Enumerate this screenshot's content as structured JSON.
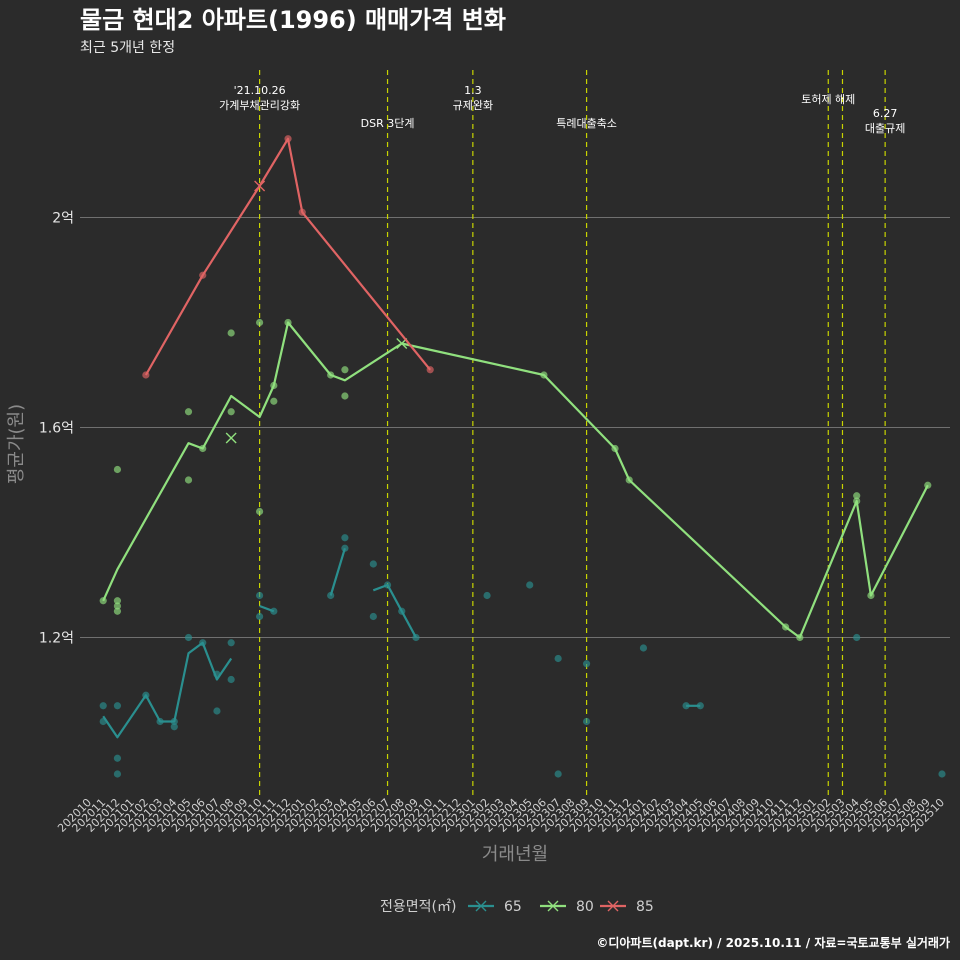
{
  "chart_data": {
    "type": "line",
    "title": "물금 현대2 아파트(1996) 매매가격 변화",
    "subtitle": "최근 5개년 한정",
    "xlabel": "거래년월",
    "ylabel": "평균가(원)",
    "caption": "©디아파트(dapt.kr) / 2025.10.11 / 자료=국토교통부 실거래가",
    "ylim": [
      0.9,
      2.3
    ],
    "yticks": [
      {
        "value": 1.2,
        "label": "1.2억"
      },
      {
        "value": 1.6,
        "label": "1.6억"
      },
      {
        "value": 2.0,
        "label": "2억"
      }
    ],
    "x_start": "202010",
    "x_end": "202510",
    "x_categories": [
      "202010",
      "202011",
      "202012",
      "202101",
      "202102",
      "202103",
      "202104",
      "202105",
      "202106",
      "202107",
      "202108",
      "202109",
      "202110",
      "202111",
      "202112",
      "202201",
      "202202",
      "202203",
      "202204",
      "202205",
      "202206",
      "202207",
      "202208",
      "202209",
      "202210",
      "202211",
      "202212",
      "202301",
      "202302",
      "202303",
      "202304",
      "202305",
      "202306",
      "202307",
      "202308",
      "202309",
      "202310",
      "202311",
      "202312",
      "202401",
      "202402",
      "202403",
      "202404",
      "202405",
      "202406",
      "202407",
      "202408",
      "202409",
      "202410",
      "202411",
      "202412",
      "202501",
      "202502",
      "202503",
      "202504",
      "202505",
      "202506",
      "202507",
      "202508",
      "202509",
      "202510"
    ],
    "legend_title": "전용면적(㎡)",
    "series": [
      {
        "name": "65",
        "color": "#2a8f8f",
        "line": [
          {
            "x": "202011",
            "y": 1.05
          },
          {
            "x": "202012",
            "y": 1.01
          },
          {
            "x": "202102",
            "y": 1.09
          },
          {
            "x": "202103",
            "y": 1.04
          },
          {
            "x": "202104",
            "y": 1.04
          },
          {
            "x": "202105",
            "y": 1.17
          },
          {
            "x": "202106",
            "y": 1.19
          },
          {
            "x": "202107",
            "y": 1.12
          },
          {
            "x": "202108",
            "y": 1.16
          },
          {
            "x": "202110",
            "y": 1.26
          },
          {
            "x": "202111",
            "y": 1.25
          },
          {
            "x": "202203",
            "y": 1.28
          },
          {
            "x": "202204",
            "y": 1.37
          },
          {
            "x": "202206",
            "y": 1.29
          },
          {
            "x": "202207",
            "y": 1.3
          },
          {
            "x": "202208",
            "y": 1.25
          },
          {
            "x": "202209",
            "y": 1.2
          },
          {
            "x": "202404",
            "y": 1.07
          },
          {
            "x": "202405",
            "y": 1.07
          }
        ],
        "segments": [
          [
            0,
            8
          ],
          [
            9,
            10
          ],
          [
            11,
            12
          ],
          [
            13,
            16
          ],
          [
            17,
            18
          ]
        ],
        "points": [
          {
            "x": "202011",
            "y": 1.07
          },
          {
            "x": "202011",
            "y": 1.04
          },
          {
            "x": "202012",
            "y": 1.07
          },
          {
            "x": "202012",
            "y": 0.97
          },
          {
            "x": "202012",
            "y": 0.94
          },
          {
            "x": "202102",
            "y": 1.09
          },
          {
            "x": "202103",
            "y": 1.04
          },
          {
            "x": "202104",
            "y": 1.03
          },
          {
            "x": "202104",
            "y": 1.04
          },
          {
            "x": "202105",
            "y": 1.2
          },
          {
            "x": "202106",
            "y": 1.19
          },
          {
            "x": "202107",
            "y": 1.13
          },
          {
            "x": "202107",
            "y": 1.06
          },
          {
            "x": "202108",
            "y": 1.12
          },
          {
            "x": "202108",
            "y": 1.19
          },
          {
            "x": "202110",
            "y": 1.28
          },
          {
            "x": "202110",
            "y": 1.24
          },
          {
            "x": "202111",
            "y": 1.25
          },
          {
            "x": "202203",
            "y": 1.28
          },
          {
            "x": "202204",
            "y": 1.39
          },
          {
            "x": "202204",
            "y": 1.37
          },
          {
            "x": "202206",
            "y": 1.34
          },
          {
            "x": "202206",
            "y": 1.24
          },
          {
            "x": "202207",
            "y": 1.3
          },
          {
            "x": "202208",
            "y": 1.25
          },
          {
            "x": "202209",
            "y": 1.2
          },
          {
            "x": "202302",
            "y": 1.28
          },
          {
            "x": "202305",
            "y": 1.3
          },
          {
            "x": "202307",
            "y": 1.16
          },
          {
            "x": "202307",
            "y": 0.94
          },
          {
            "x": "202309",
            "y": 1.15
          },
          {
            "x": "202309",
            "y": 1.04
          },
          {
            "x": "202401",
            "y": 1.18
          },
          {
            "x": "202404",
            "y": 1.07
          },
          {
            "x": "202405",
            "y": 1.07
          },
          {
            "x": "202504",
            "y": 1.2
          },
          {
            "x": "202510",
            "y": 0.94
          }
        ],
        "crosses": []
      },
      {
        "name": "80",
        "color": "#90e07e",
        "line": [
          {
            "x": "202011",
            "y": 1.27
          },
          {
            "x": "202012",
            "y": 1.33
          },
          {
            "x": "202105",
            "y": 1.57
          },
          {
            "x": "202106",
            "y": 1.56
          },
          {
            "x": "202108",
            "y": 1.66
          },
          {
            "x": "202110",
            "y": 1.62
          },
          {
            "x": "202111",
            "y": 1.68
          },
          {
            "x": "202112",
            "y": 1.8
          },
          {
            "x": "202203",
            "y": 1.7
          },
          {
            "x": "202204",
            "y": 1.69
          },
          {
            "x": "202208",
            "y": 1.76
          },
          {
            "x": "202306",
            "y": 1.7
          },
          {
            "x": "202311",
            "y": 1.56
          },
          {
            "x": "202312",
            "y": 1.5
          },
          {
            "x": "202411",
            "y": 1.22
          },
          {
            "x": "202412",
            "y": 1.2
          },
          {
            "x": "202504",
            "y": 1.46
          },
          {
            "x": "202505",
            "y": 1.28
          },
          {
            "x": "202509",
            "y": 1.49
          }
        ],
        "segments": [
          [
            0,
            18
          ]
        ],
        "points": [
          {
            "x": "202011",
            "y": 1.27
          },
          {
            "x": "202012",
            "y": 1.52
          },
          {
            "x": "202012",
            "y": 1.27
          },
          {
            "x": "202012",
            "y": 1.26
          },
          {
            "x": "202012",
            "y": 1.25
          },
          {
            "x": "202105",
            "y": 1.63
          },
          {
            "x": "202105",
            "y": 1.5
          },
          {
            "x": "202106",
            "y": 1.56
          },
          {
            "x": "202108",
            "y": 1.78
          },
          {
            "x": "202108",
            "y": 1.63
          },
          {
            "x": "202110",
            "y": 1.8
          },
          {
            "x": "202110",
            "y": 1.44
          },
          {
            "x": "202111",
            "y": 1.68
          },
          {
            "x": "202111",
            "y": 1.65
          },
          {
            "x": "202112",
            "y": 1.8
          },
          {
            "x": "202203",
            "y": 1.7
          },
          {
            "x": "202204",
            "y": 1.71
          },
          {
            "x": "202204",
            "y": 1.66
          },
          {
            "x": "202306",
            "y": 1.7
          },
          {
            "x": "202311",
            "y": 1.56
          },
          {
            "x": "202312",
            "y": 1.5
          },
          {
            "x": "202411",
            "y": 1.22
          },
          {
            "x": "202412",
            "y": 1.2
          },
          {
            "x": "202504",
            "y": 1.47
          },
          {
            "x": "202504",
            "y": 1.46
          },
          {
            "x": "202505",
            "y": 1.28
          },
          {
            "x": "202509",
            "y": 1.49
          }
        ],
        "crosses": [
          {
            "x": "202108",
            "y": 1.58
          },
          {
            "x": "202208",
            "y": 1.76
          }
        ]
      },
      {
        "name": "85",
        "color": "#e06464",
        "line": [
          {
            "x": "202102",
            "y": 1.7
          },
          {
            "x": "202106",
            "y": 1.89
          },
          {
            "x": "202110",
            "y": 2.06
          },
          {
            "x": "202112",
            "y": 2.15
          },
          {
            "x": "202201",
            "y": 2.01
          },
          {
            "x": "202210",
            "y": 1.71
          }
        ],
        "segments": [
          [
            0,
            5
          ]
        ],
        "points": [
          {
            "x": "202102",
            "y": 1.7
          },
          {
            "x": "202106",
            "y": 1.89
          },
          {
            "x": "202112",
            "y": 2.15
          },
          {
            "x": "202201",
            "y": 2.01
          },
          {
            "x": "202210",
            "y": 1.71
          }
        ],
        "crosses": [
          {
            "x": "202110",
            "y": 2.06
          }
        ]
      }
    ],
    "annotations": [
      {
        "x": "202110",
        "lines": [
          "'21.10.26",
          "가계부채관리강화"
        ],
        "level": 0
      },
      {
        "x": "202207",
        "lines": [
          "DSR 3단계"
        ],
        "level": 1
      },
      {
        "x": "202301",
        "lines": [
          "1.3",
          "규제완화"
        ],
        "level": 0
      },
      {
        "x": "202309",
        "lines": [
          "특례대출축소"
        ],
        "level": 1
      },
      {
        "x": "202502",
        "lines": [
          "토허제 해제"
        ],
        "level": 0.5
      },
      {
        "x": "202503",
        "lines": [],
        "level": 0
      },
      {
        "x": "202506",
        "lines": [
          "6.27",
          "대출규제"
        ],
        "level": 1
      }
    ]
  }
}
